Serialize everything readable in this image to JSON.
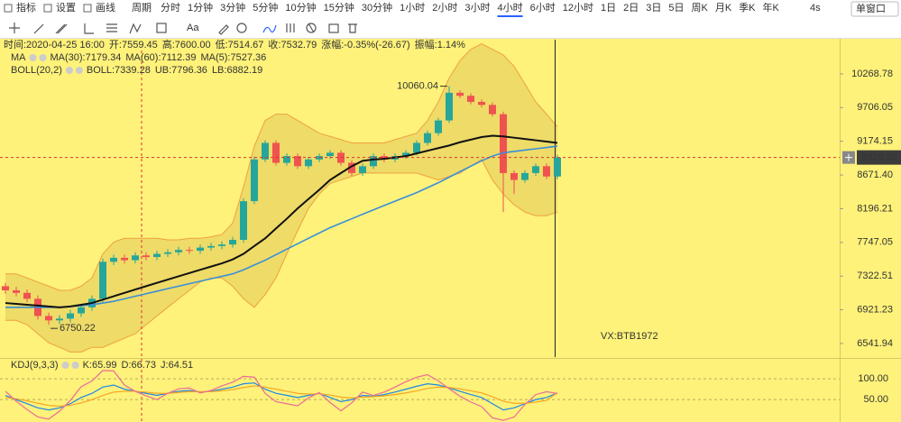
{
  "toolbar": {
    "left": [
      "指标",
      "设置",
      "画线"
    ],
    "periods_label": "周期",
    "periods": [
      "分时",
      "1分钟",
      "3分钟",
      "5分钟",
      "10分钟",
      "15分钟",
      "30分钟",
      "1小时",
      "2小时",
      "3小时",
      "4小时",
      "6小时",
      "12小时",
      "1日",
      "2日",
      "3日",
      "5日",
      "周K",
      "月K",
      "季K",
      "年K"
    ],
    "active_period": 10,
    "refresh": "4s",
    "window": "单窗口"
  },
  "info": [
    {
      "text": "时间:2020-04-25 16:00",
      "color": "#333333"
    },
    {
      "text": "开:7559.45",
      "color": "#333333"
    },
    {
      "text": "高:7600.00",
      "color": "#333333"
    },
    {
      "text": "低:7514.67",
      "color": "#333333"
    },
    {
      "text": "收:7532.79",
      "color": "#333333"
    },
    {
      "text": "涨幅:-0.35%(-26.67)",
      "color": "#e53935"
    },
    {
      "text": "振幅:1.14%",
      "color": "#333333"
    }
  ],
  "legends": [
    [
      {
        "text": "MA",
        "color": "#333333"
      },
      {
        "text": "MA(30):7179.34",
        "color": "#222222"
      },
      {
        "text": "MA(60):7112.39",
        "color": "#1e88e5"
      },
      {
        "text": "MA(5):7527.36",
        "color": "#ec6a9a"
      }
    ],
    [
      {
        "text": "BOLL(20,2)",
        "color": "#333333"
      },
      {
        "text": "BOLL:7339.28",
        "color": "#4caf50"
      },
      {
        "text": "UB:7796.36",
        "color": "#f59a23"
      },
      {
        "text": "LB:6882.19",
        "color": "#e67e22"
      }
    ],
    [
      {
        "text": "KDJ(9,3,3)",
        "color": "#333333"
      },
      {
        "text": "K:65.99",
        "color": "#1e88e5"
      },
      {
        "text": "D:66.73",
        "color": "#f5a623"
      },
      {
        "text": "J:64.51",
        "color": "#ec6a9a"
      }
    ]
  ],
  "chart_data": {
    "type": "candlestick",
    "log_scale": true,
    "up_color": "#26a69a",
    "down_color": "#ef5350",
    "ylim": [
      6395,
      10874
    ],
    "yticks": [
      10268.78,
      9706.05,
      9174.15,
      {
        "value": 8671.4,
        "label": "8671.40"
      },
      8196.21,
      7747.05,
      7322.51,
      6921.23,
      6541.94
    ],
    "open": [
      7200,
      7150,
      7120,
      7050,
      6850,
      6800,
      6820,
      6880,
      6950,
      7050,
      7500,
      7550,
      7520,
      7580,
      7560,
      7600,
      7620,
      7650,
      7640,
      7680,
      7700,
      7720,
      7780,
      8300,
      8900,
      9150,
      8850,
      8950,
      8800,
      8900,
      8950,
      9000,
      8850,
      8700,
      8800,
      8950,
      8900,
      8950,
      9000,
      9150,
      9300,
      9500,
      9950,
      9900,
      9800,
      9750,
      9600,
      8700,
      8600,
      8700,
      8800,
      8650
    ],
    "high": [
      7240,
      7190,
      7160,
      7090,
      6890,
      6860,
      6920,
      6990,
      7090,
      7540,
      7590,
      7590,
      7620,
      7620,
      7640,
      7660,
      7690,
      7690,
      7720,
      7740,
      7760,
      7820,
      8340,
      8940,
      9190,
      9190,
      8990,
      8990,
      8940,
      8990,
      9040,
      9040,
      8890,
      8840,
      8990,
      8990,
      8990,
      9040,
      9190,
      9340,
      9540,
      10060.04,
      9990,
      9940,
      9840,
      9790,
      9640,
      8740,
      8740,
      8840,
      8840,
      8969.3
    ],
    "low": [
      7110,
      7080,
      7010,
      6810,
      6750.22,
      6760,
      6780,
      6840,
      6910,
      7010,
      7460,
      7480,
      7480,
      7520,
      7520,
      7560,
      7580,
      7600,
      7600,
      7640,
      7660,
      7680,
      7740,
      8260,
      8860,
      8810,
      8810,
      8760,
      8760,
      8860,
      8910,
      8810,
      8660,
      8660,
      8760,
      8860,
      8860,
      8910,
      8960,
      9110,
      9260,
      9460,
      9860,
      9760,
      9710,
      9560,
      8150,
      8400,
      8560,
      8660,
      8610,
      8610
    ],
    "close": [
      7150,
      7120,
      7050,
      6850,
      6800,
      6820,
      6880,
      6950,
      7050,
      7500,
      7550,
      7520,
      7580,
      7560,
      7600,
      7620,
      7650,
      7640,
      7680,
      7700,
      7720,
      7780,
      8300,
      8900,
      9150,
      8850,
      8950,
      8800,
      8900,
      8950,
      9000,
      8850,
      8700,
      8800,
      8950,
      8900,
      8950,
      9000,
      9150,
      9300,
      9500,
      9950,
      9900,
      9800,
      9750,
      9600,
      8700,
      8600,
      8700,
      8800,
      8650,
      8929.3
    ],
    "bands": {
      "color": "#e0c95a",
      "edge_color": "#f0a040",
      "upper": [
        7350,
        7350,
        7300,
        7250,
        7200,
        7150,
        7150,
        7200,
        7300,
        7600,
        7750,
        7800,
        7800,
        7800,
        7800,
        7780,
        7780,
        7800,
        7800,
        7820,
        7850,
        8000,
        8500,
        9100,
        9500,
        9600,
        9600,
        9500,
        9400,
        9300,
        9250,
        9200,
        9150,
        9150,
        9150,
        9150,
        9200,
        9250,
        9300,
        9500,
        9800,
        10200,
        10500,
        10700,
        10800,
        10700,
        10600,
        10400,
        10100,
        9800,
        9600,
        9400
      ],
      "lower": [
        6800,
        6800,
        6750,
        6650,
        6550,
        6500,
        6450,
        6450,
        6500,
        6500,
        6550,
        6600,
        6650,
        6750,
        6850,
        6950,
        7050,
        7150,
        7250,
        7300,
        7300,
        7200,
        7050,
        6950,
        7100,
        7300,
        7600,
        7900,
        8200,
        8400,
        8550,
        8600,
        8650,
        8700,
        8700,
        8700,
        8700,
        8700,
        8700,
        8650,
        8600,
        8650,
        8700,
        8800,
        8900,
        8600,
        8400,
        8250,
        8150,
        8100,
        8100,
        8150
      ]
    },
    "lines": [
      {
        "color": "#3a8fd8",
        "values": [
          6950,
          6950,
          6950,
          6950,
          6950,
          6950,
          6960,
          6970,
          6980,
          7000,
          7020,
          7050,
          7080,
          7110,
          7140,
          7170,
          7200,
          7230,
          7260,
          7290,
          7320,
          7350,
          7400,
          7460,
          7520,
          7590,
          7660,
          7730,
          7800,
          7870,
          7940,
          8000,
          8060,
          8120,
          8180,
          8240,
          8300,
          8360,
          8420,
          8490,
          8560,
          8640,
          8720,
          8800,
          8880,
          8950,
          9000,
          9020,
          9040,
          9060,
          9080,
          9100
        ]
      },
      {
        "color": "#111111",
        "values": [
          7000,
          6990,
          6980,
          6970,
          6960,
          6950,
          6960,
          6980,
          7000,
          7040,
          7080,
          7120,
          7160,
          7200,
          7240,
          7280,
          7320,
          7360,
          7400,
          7440,
          7480,
          7530,
          7600,
          7700,
          7800,
          7930,
          8060,
          8200,
          8330,
          8460,
          8600,
          8700,
          8800,
          8880,
          8900,
          8910,
          8930,
          8950,
          8990,
          9030,
          9070,
          9110,
          9160,
          9200,
          9240,
          9260,
          9250,
          9230,
          9210,
          9190,
          9170,
          9150
        ]
      }
    ],
    "last_price_label": "8929.30",
    "watermark": "VX:BTB1972",
    "kdj": {
      "ylim": [
        -4,
        148
      ],
      "yticks": [
        {
          "value": 100,
          "label": "100.00"
        },
        {
          "value": 50,
          "label": "50.00"
        }
      ],
      "series": [
        {
          "color": "#1e88e5",
          "values": [
            60,
            50,
            40,
            30,
            25,
            30,
            40,
            55,
            65,
            80,
            85,
            75,
            70,
            65,
            60,
            65,
            70,
            72,
            68,
            70,
            75,
            80,
            88,
            90,
            75,
            65,
            60,
            55,
            60,
            65,
            55,
            45,
            50,
            60,
            58,
            62,
            68,
            75,
            82,
            88,
            85,
            78,
            70,
            62,
            55,
            40,
            25,
            30,
            40,
            50,
            55,
            65.99
          ]
        },
        {
          "color": "#f5a623",
          "values": [
            55,
            52,
            47,
            41,
            36,
            34,
            36,
            42,
            50,
            60,
            68,
            70,
            70,
            68,
            65,
            65,
            67,
            69,
            69,
            69,
            71,
            74,
            79,
            83,
            80,
            75,
            70,
            65,
            63,
            64,
            61,
            56,
            54,
            56,
            57,
            59,
            62,
            66,
            71,
            77,
            80,
            79,
            76,
            71,
            66,
            57,
            46,
            41,
            41,
            44,
            48,
            66.73
          ]
        },
        {
          "color": "#ec6a9a",
          "values": [
            70,
            46,
            26,
            8,
            3,
            22,
            48,
            81,
            95,
            120,
            119,
            85,
            70,
            59,
            50,
            65,
            76,
            78,
            66,
            72,
            83,
            92,
            106,
            104,
            65,
            45,
            40,
            35,
            54,
            67,
            43,
            23,
            42,
            68,
            60,
            68,
            80,
            93,
            104,
            110,
            95,
            76,
            58,
            44,
            33,
            6,
            0,
            8,
            38,
            62,
            69,
            64.51
          ]
        }
      ]
    }
  }
}
